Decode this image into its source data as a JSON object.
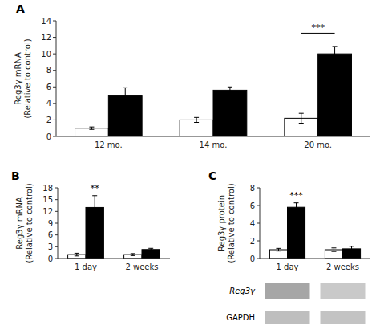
{
  "chart_data": [
    {
      "type": "bar",
      "title": "A",
      "y_label": "Reg3γ mRNA\n(Relative to control)",
      "categories": [
        "12 mo.",
        "14 mo.",
        "20 mo."
      ],
      "series": [
        {
          "color": "#ffffff",
          "values": [
            1.0,
            2.0,
            2.2
          ],
          "errors": [
            0.15,
            0.3,
            0.6
          ]
        },
        {
          "color": "#000000",
          "values": [
            5.0,
            5.6,
            10.0
          ],
          "errors": [
            0.9,
            0.4,
            0.9
          ]
        }
      ],
      "ylim": [
        0,
        14
      ],
      "yticks": [
        0,
        2,
        4,
        6,
        8,
        10,
        12,
        14
      ],
      "grid": false,
      "annotations": [
        {
          "text": "***",
          "category": "20 mo.",
          "y": 12.5
        }
      ]
    },
    {
      "type": "bar",
      "title": "B",
      "y_label": "Reg3γ mRNA\n(Relative to control)",
      "categories": [
        "1 day",
        "2 weeks"
      ],
      "series": [
        {
          "color": "#ffffff",
          "values": [
            1.0,
            1.0
          ],
          "errors": [
            0.35,
            0.25
          ]
        },
        {
          "color": "#000000",
          "values": [
            13.0,
            2.3
          ],
          "errors": [
            3.0,
            0.3
          ]
        }
      ],
      "ylim": [
        0,
        18
      ],
      "yticks": [
        0,
        3,
        6,
        9,
        12,
        15,
        18
      ],
      "grid": false,
      "annotations": [
        {
          "text": "**",
          "category": "1 day"
        }
      ]
    },
    {
      "type": "bar",
      "title": "C",
      "y_label": "Reg3γ protein\n(Relative to control)",
      "categories": [
        "1 day",
        "2 weeks"
      ],
      "series": [
        {
          "color": "#ffffff",
          "values": [
            1.0,
            1.0
          ],
          "errors": [
            0.15,
            0.2
          ]
        },
        {
          "color": "#000000",
          "values": [
            5.8,
            1.1
          ],
          "errors": [
            0.5,
            0.28
          ]
        }
      ],
      "ylim": [
        0,
        8
      ],
      "yticks": [
        0,
        2,
        4,
        6,
        8
      ],
      "grid": false,
      "annotations": [
        {
          "text": "***",
          "category": "1 day"
        },
        {
          "text": "Reg3γ"
        },
        {
          "text": "GAPDH"
        }
      ]
    }
  ]
}
